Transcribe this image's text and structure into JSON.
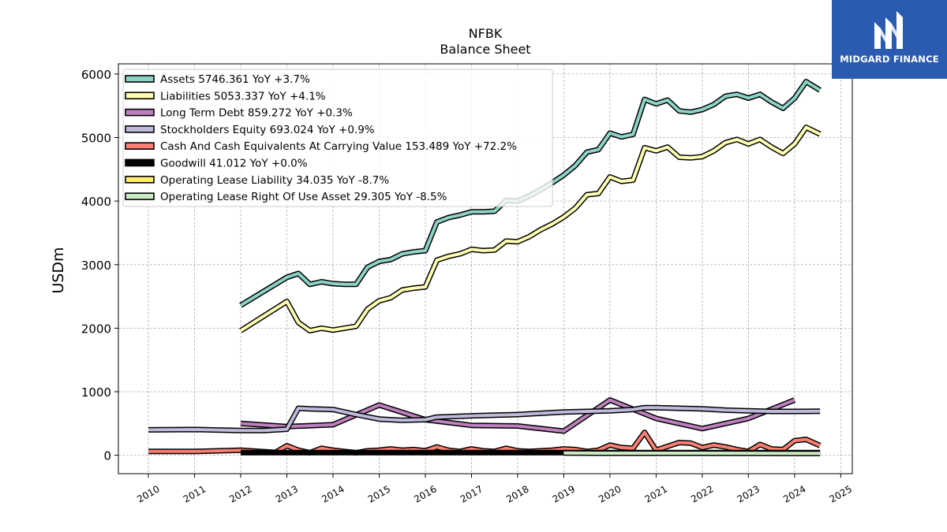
{
  "brand": {
    "name": "MIDGARD FINANCE",
    "icon": "midgard-logo-icon",
    "color": "#2a5bb0"
  },
  "chart_data": {
    "type": "line",
    "title": "NFBK",
    "subtitle": "Balance  Sheet",
    "ylabel": "USDm",
    "xlabel": "",
    "xlim": [
      2009.35,
      2025.25
    ],
    "ylim": [
      -290,
      6160
    ],
    "yticks": [
      0,
      1000,
      2000,
      3000,
      4000,
      5000,
      6000
    ],
    "xticks": [
      2010,
      2011,
      2012,
      2013,
      2014,
      2015,
      2016,
      2017,
      2018,
      2019,
      2020,
      2021,
      2022,
      2023,
      2024,
      2025
    ],
    "grid": true,
    "legend_position": "top-left",
    "series": [
      {
        "name": "Assets  5746.361 YoY +3.7%",
        "color": "#8dd3c7",
        "x": [
          2012.0,
          2013.0,
          2013.25,
          2013.5,
          2013.75,
          2014.0,
          2014.25,
          2014.5,
          2014.75,
          2015.0,
          2015.25,
          2015.5,
          2015.75,
          2016.0,
          2016.25,
          2016.5,
          2016.75,
          2017.0,
          2017.25,
          2017.5,
          2017.75,
          2018.0,
          2018.25,
          2018.5,
          2018.75,
          2019.0,
          2019.25,
          2019.5,
          2019.75,
          2020.0,
          2020.25,
          2020.5,
          2020.75,
          2021.0,
          2021.25,
          2021.5,
          2021.75,
          2022.0,
          2022.25,
          2022.5,
          2022.75,
          2023.0,
          2023.25,
          2023.5,
          2023.75,
          2024.0,
          2024.25,
          2024.55
        ],
        "values": [
          2360,
          2800,
          2860,
          2690,
          2730,
          2700,
          2690,
          2690,
          2960,
          3050,
          3080,
          3170,
          3200,
          3220,
          3670,
          3740,
          3780,
          3830,
          3830,
          3840,
          4010,
          4000,
          4080,
          4180,
          4290,
          4410,
          4560,
          4770,
          4810,
          5070,
          5010,
          5050,
          5600,
          5530,
          5590,
          5420,
          5400,
          5440,
          5520,
          5650,
          5680,
          5620,
          5680,
          5560,
          5460,
          5620,
          5880,
          5746
        ]
      },
      {
        "name": "Liabilities  5053.337 YoY +4.1%",
        "color": "#ffffb3",
        "x": [
          2012.0,
          2013.0,
          2013.25,
          2013.5,
          2013.75,
          2014.0,
          2014.25,
          2014.5,
          2014.75,
          2015.0,
          2015.25,
          2015.5,
          2015.75,
          2016.0,
          2016.25,
          2016.5,
          2016.75,
          2017.0,
          2017.25,
          2017.5,
          2017.75,
          2018.0,
          2018.25,
          2018.5,
          2018.75,
          2019.0,
          2019.25,
          2019.5,
          2019.75,
          2020.0,
          2020.25,
          2020.5,
          2020.75,
          2021.0,
          2021.25,
          2021.5,
          2021.75,
          2022.0,
          2022.25,
          2022.5,
          2022.75,
          2023.0,
          2023.25,
          2023.5,
          2023.75,
          2024.0,
          2024.25,
          2024.55
        ],
        "values": [
          1960,
          2420,
          2090,
          1960,
          2000,
          1970,
          2000,
          2030,
          2300,
          2430,
          2480,
          2600,
          2630,
          2650,
          3070,
          3130,
          3170,
          3240,
          3220,
          3230,
          3370,
          3360,
          3440,
          3550,
          3640,
          3750,
          3890,
          4100,
          4120,
          4380,
          4310,
          4330,
          4840,
          4790,
          4850,
          4690,
          4680,
          4700,
          4790,
          4920,
          4970,
          4900,
          4970,
          4850,
          4750,
          4900,
          5160,
          5053
        ]
      },
      {
        "name": "Long Term Debt  859.272 YoY +0.3%",
        "color": "#bc80bd",
        "x": [
          2012.0,
          2013.0,
          2014.0,
          2015.0,
          2016.0,
          2017.0,
          2018.0,
          2019.0,
          2020.0,
          2021.0,
          2022.0,
          2023.0,
          2024.0
        ],
        "values": [
          500,
          450,
          480,
          790,
          560,
          470,
          460,
          380,
          870,
          580,
          420,
          580,
          870
        ]
      },
      {
        "name": "Stockholders Equity  693.024 YoY +0.9%",
        "color": "#bebada",
        "x": [
          2010.0,
          2011.0,
          2012.0,
          2012.5,
          2013.0,
          2013.25,
          2013.5,
          2014.0,
          2014.5,
          2015.0,
          2015.5,
          2016.0,
          2016.25,
          2017.0,
          2018.0,
          2019.0,
          2020.0,
          2020.5,
          2020.75,
          2021.0,
          2021.5,
          2022.0,
          2022.5,
          2023.0,
          2023.5,
          2024.0,
          2024.55
        ],
        "values": [
          400,
          405,
          390,
          390,
          410,
          740,
          730,
          720,
          640,
          570,
          550,
          560,
          600,
          620,
          640,
          680,
          700,
          720,
          750,
          750,
          740,
          730,
          710,
          700,
          690,
          690,
          693
        ]
      },
      {
        "name": "Cash And Cash Equivalents At Carrying Value  153.489 YoY +72.2%",
        "color": "#fb8072",
        "x": [
          2010.0,
          2011.0,
          2012.0,
          2012.75,
          2013.0,
          2013.25,
          2013.5,
          2013.75,
          2014.0,
          2014.25,
          2014.5,
          2014.75,
          2015.0,
          2015.25,
          2015.5,
          2015.75,
          2016.0,
          2016.25,
          2016.5,
          2016.75,
          2017.0,
          2017.25,
          2017.5,
          2017.75,
          2018.0,
          2018.25,
          2018.5,
          2018.75,
          2019.0,
          2019.25,
          2019.5,
          2019.75,
          2020.0,
          2020.25,
          2020.5,
          2020.75,
          2021.0,
          2021.25,
          2021.5,
          2021.75,
          2022.0,
          2022.25,
          2022.5,
          2022.75,
          2023.0,
          2023.25,
          2023.5,
          2023.75,
          2024.0,
          2024.25,
          2024.55
        ],
        "values": [
          60,
          60,
          80,
          45,
          150,
          80,
          40,
          110,
          80,
          60,
          40,
          70,
          80,
          100,
          80,
          90,
          70,
          130,
          80,
          60,
          100,
          70,
          60,
          110,
          70,
          60,
          70,
          80,
          100,
          90,
          60,
          80,
          160,
          120,
          110,
          360,
          80,
          140,
          200,
          190,
          120,
          160,
          130,
          90,
          60,
          170,
          100,
          90,
          230,
          250,
          153
        ]
      },
      {
        "name": "Goodwill  41.012 YoY +0.0%",
        "color": "#000000",
        "x": [
          2012.0,
          2024.55
        ],
        "values": [
          41,
          41
        ]
      },
      {
        "name": "Operating Lease Liability  34.035 YoY -8.7%",
        "color": "#ffed6f",
        "x": [
          2019.0,
          2020.0,
          2021.0,
          2022.0,
          2023.0,
          2024.0,
          2024.55
        ],
        "values": [
          40,
          38,
          38,
          37,
          36,
          35,
          34
        ]
      },
      {
        "name": "Operating Lease Right Of Use Asset  29.305 YoY -8.5%",
        "color": "#ccebc5",
        "x": [
          2019.0,
          2020.0,
          2021.0,
          2022.0,
          2023.0,
          2024.0,
          2024.55
        ],
        "values": [
          35,
          33,
          33,
          32,
          31,
          30,
          29
        ]
      }
    ]
  }
}
